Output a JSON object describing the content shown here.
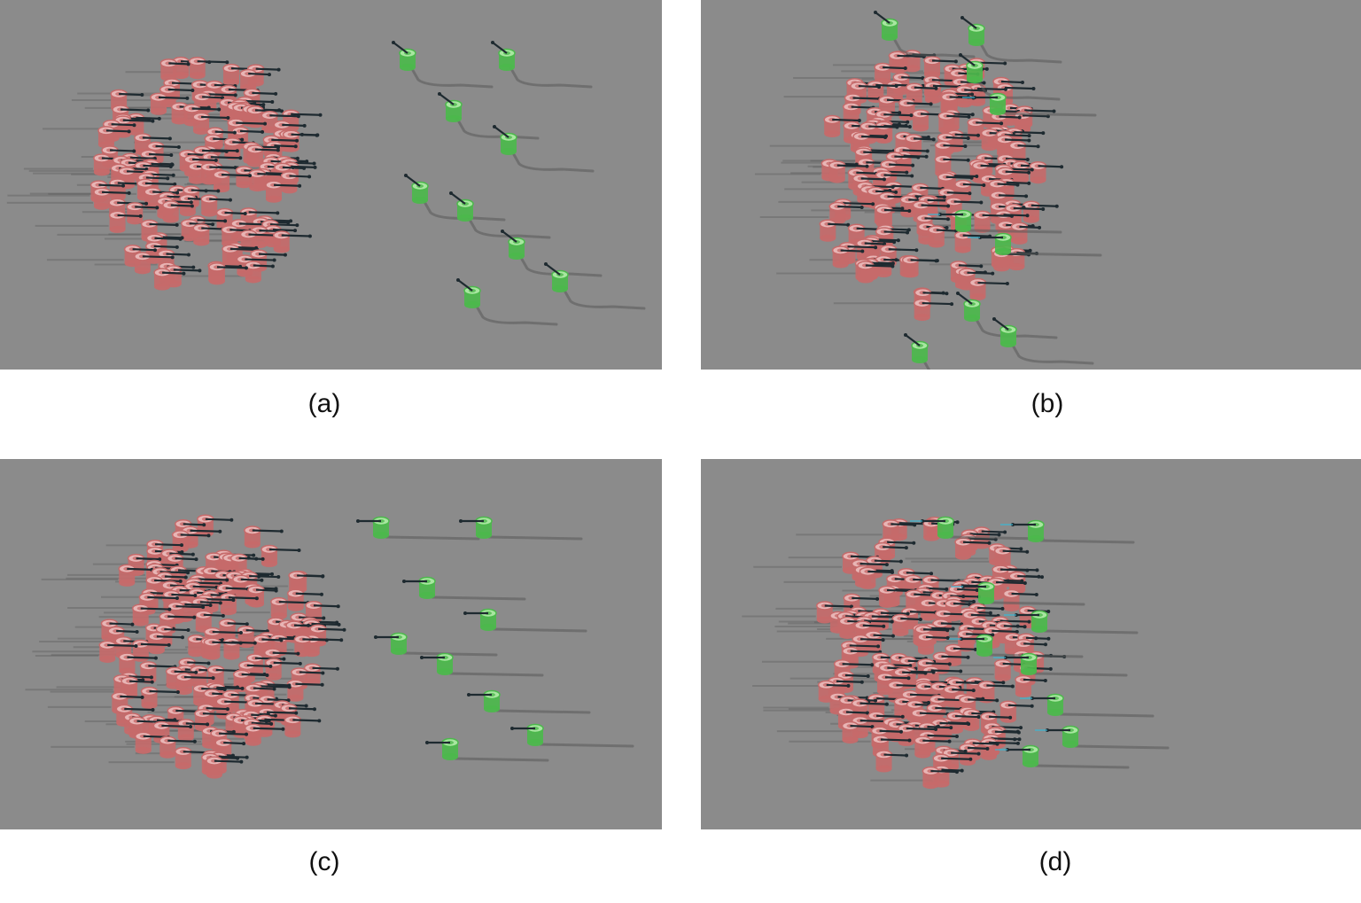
{
  "panels": [
    {
      "id": "a",
      "caption": "(a)",
      "stage": "separated-diagonal"
    },
    {
      "id": "b",
      "caption": "(b)",
      "stage": "merging-diagonal"
    },
    {
      "id": "c",
      "caption": "(c)",
      "stage": "separated-aligned"
    },
    {
      "id": "d",
      "caption": "(d)",
      "stage": "merging-aligned"
    }
  ],
  "colors": {
    "background": "#8b8b8b",
    "red_agent": "#c66a6a",
    "red_agent_top": "#e8b5b5",
    "green_agent": "#4cb84c",
    "green_agent_top": "#a8e6a0",
    "heading_line": "#1e2a30",
    "trail": "#5a5a5a",
    "link_line": "#3bb8d6"
  },
  "legend_icons": [
    "red-cylinder-agent-icon",
    "green-cylinder-agent-icon"
  ]
}
